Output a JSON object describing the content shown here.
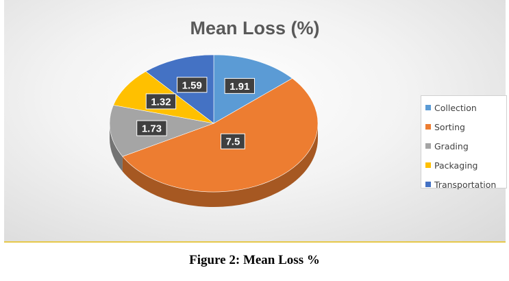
{
  "chart_data": {
    "type": "pie",
    "title": "Mean Loss (%)",
    "categories": [
      "Collection",
      "Sorting",
      "Grading",
      "Packaging",
      "Transportation"
    ],
    "values": [
      1.91,
      7.5,
      1.73,
      1.32,
      1.59
    ],
    "colors": [
      "#5b9bd5",
      "#ed7d31",
      "#a5a5a5",
      "#ffc000",
      "#4472c4"
    ],
    "data_labels": [
      "1.91",
      "7.5",
      "1.73",
      "1.32",
      "1.59"
    ],
    "legend_position": "right",
    "style": "3d",
    "start": "12 o'clock",
    "direction": "clockwise"
  },
  "caption": "Figure 2: Mean Loss %"
}
